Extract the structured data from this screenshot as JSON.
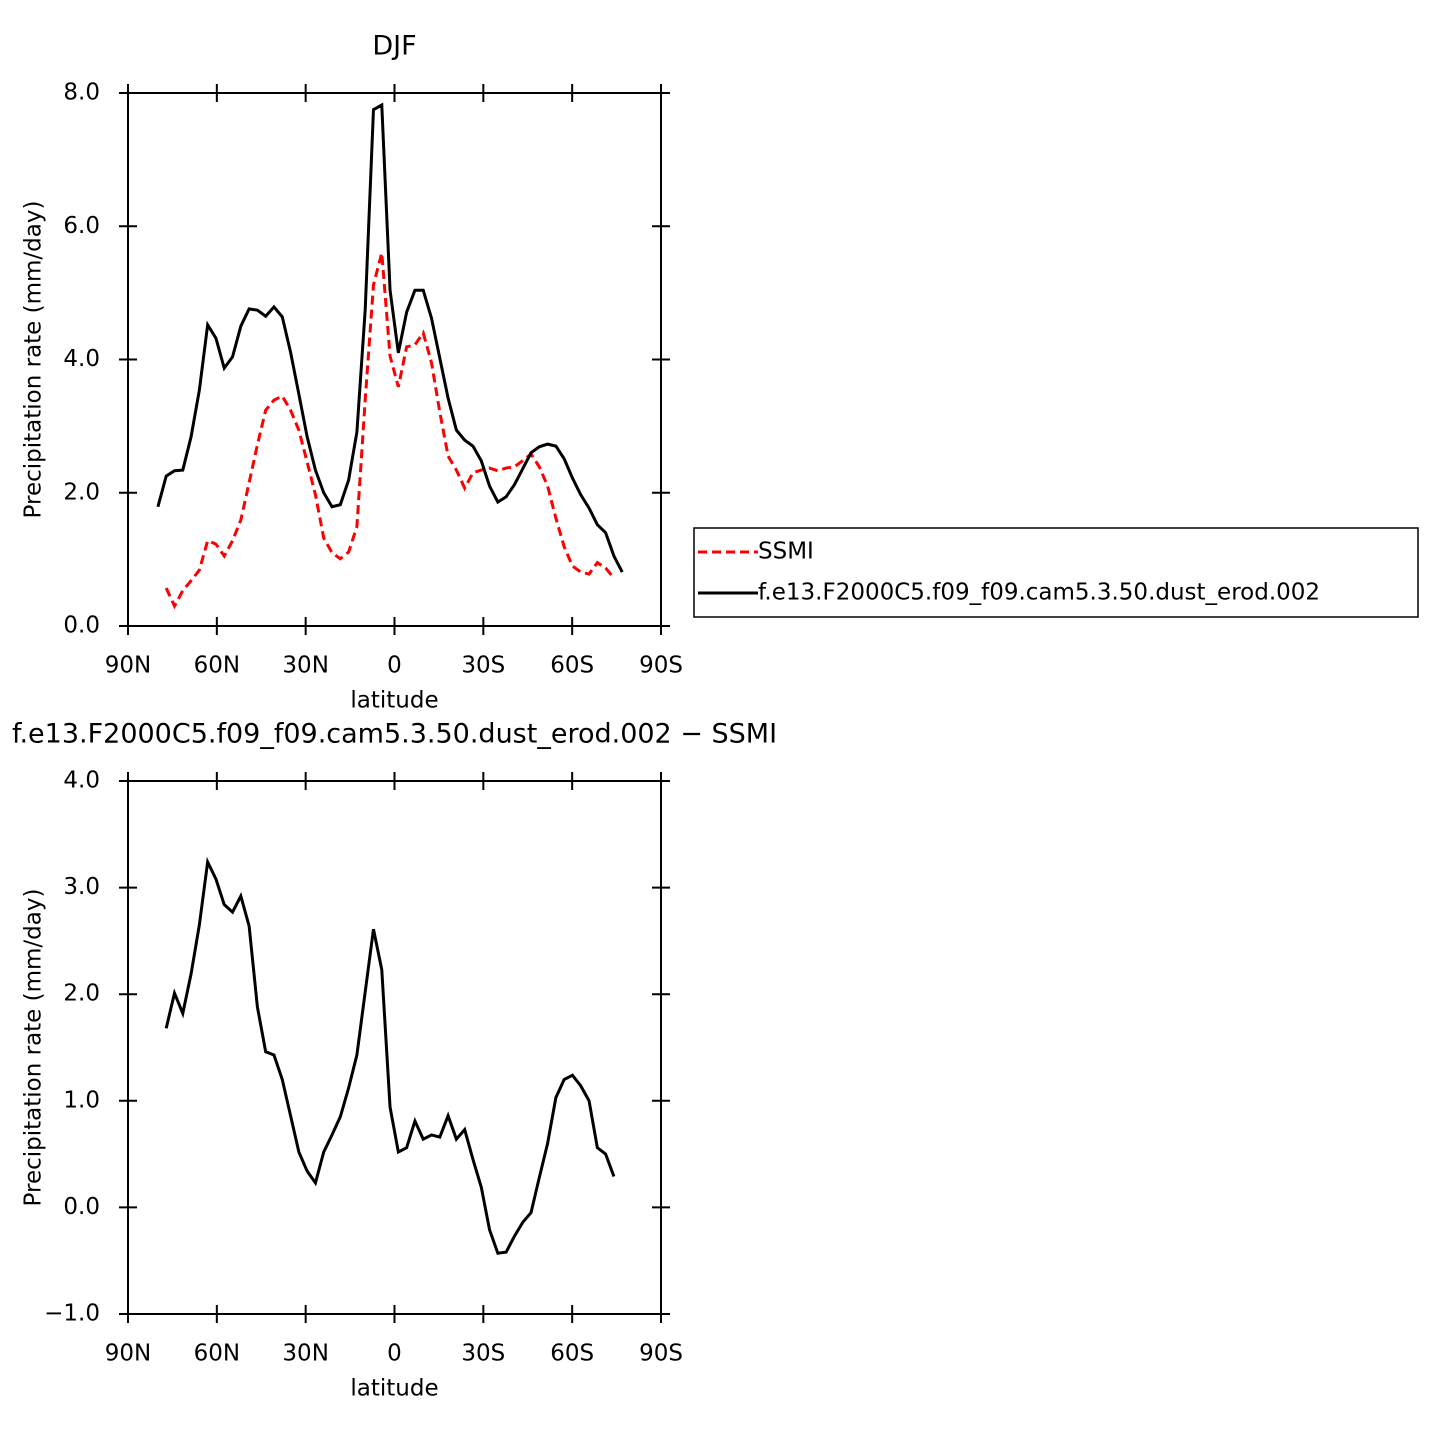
{
  "chart_data": [
    {
      "type": "line",
      "title": "DJF",
      "x_label": "latitude",
      "y_label": "Precipitation rate (mm/day)",
      "x": [
        79.9,
        77.1,
        74.3,
        71.5,
        68.7,
        65.9,
        63.1,
        60.3,
        57.5,
        54.7,
        51.9,
        49.1,
        46.3,
        43.5,
        40.7,
        37.9,
        35.1,
        32.3,
        29.5,
        26.7,
        23.9,
        21.1,
        18.3,
        15.5,
        12.7,
        9.9,
        7.1,
        4.3,
        1.5,
        -1.3,
        -4.1,
        -6.9,
        -9.7,
        -12.5,
        -15.3,
        -18.1,
        -20.9,
        -23.7,
        -26.5,
        -29.3,
        -32.1,
        -34.9,
        -37.7,
        -40.5,
        -43.3,
        -46.1,
        -48.9,
        -51.7,
        -54.5,
        -57.3,
        -60.1,
        -62.9,
        -65.7,
        -68.5,
        -71.3,
        -74.1,
        -76.9
      ],
      "xlim": [
        90,
        -90
      ],
      "xticks": [
        {
          "value": 90,
          "label": "90N"
        },
        {
          "value": 60,
          "label": "60N"
        },
        {
          "value": 30,
          "label": "30N"
        },
        0,
        {
          "value": -30,
          "label": "30S"
        },
        {
          "value": -60,
          "label": "60S"
        },
        {
          "value": -90,
          "label": "90S"
        }
      ],
      "ylim": [
        0,
        8
      ],
      "yticks": [
        {
          "value": 0,
          "label": "0.0"
        },
        {
          "value": 2,
          "label": "2.0"
        },
        {
          "value": 4,
          "label": "4.0"
        },
        {
          "value": 6,
          "label": "6.0"
        },
        {
          "value": 8,
          "label": "8.0"
        }
      ],
      "legend": "right",
      "series": [
        {
          "name": "SSMI",
          "color": "#ff0000",
          "dash": "dashed",
          "values": [
            null,
            0.57,
            0.3,
            0.53,
            0.68,
            0.84,
            1.28,
            1.23,
            1.05,
            1.28,
            1.59,
            2.15,
            2.72,
            3.24,
            3.39,
            3.45,
            3.24,
            2.94,
            2.46,
            1.97,
            1.32,
            1.1,
            1.01,
            1.11,
            1.49,
            3.39,
            5.12,
            5.6,
            4.05,
            3.59,
            4.19,
            4.22,
            4.4,
            3.95,
            3.21,
            2.55,
            2.34,
            2.07,
            2.3,
            2.34,
            2.37,
            2.33,
            2.37,
            2.39,
            2.48,
            2.58,
            2.39,
            2.1,
            1.62,
            1.19,
            0.9,
            0.81,
            0.78,
            0.95,
            0.87,
            0.72,
            null
          ]
        },
        {
          "name": "f.e13.F2000C5.f09_f09.cam5.3.50.dust_erod.002",
          "color": "#000000",
          "dash": "solid",
          "values": [
            1.79,
            2.25,
            2.33,
            2.34,
            2.84,
            3.54,
            4.52,
            4.32,
            3.87,
            4.04,
            4.5,
            4.76,
            4.74,
            4.65,
            4.79,
            4.64,
            4.11,
            3.48,
            2.84,
            2.34,
            2.0,
            1.79,
            1.82,
            2.19,
            2.91,
            4.74,
            7.75,
            7.82,
            5.04,
            4.1,
            4.71,
            5.04,
            5.04,
            4.62,
            4.02,
            3.42,
            2.94,
            2.79,
            2.7,
            2.48,
            2.1,
            1.86,
            1.94,
            2.12,
            2.36,
            2.6,
            2.69,
            2.73,
            2.7,
            2.51,
            2.22,
            1.97,
            1.77,
            1.52,
            1.4,
            1.05,
            0.81
          ]
        }
      ]
    },
    {
      "type": "line",
      "title": "f.e13.F2000C5.f09_f09.cam5.3.50.dust_erod.002 − SSMI",
      "x_label": "latitude",
      "y_label": "Precipitation rate (mm/day)",
      "x": [
        79.9,
        77.1,
        74.3,
        71.5,
        68.7,
        65.9,
        63.1,
        60.3,
        57.5,
        54.7,
        51.9,
        49.1,
        46.3,
        43.5,
        40.7,
        37.9,
        35.1,
        32.3,
        29.5,
        26.7,
        23.9,
        21.1,
        18.3,
        15.5,
        12.7,
        9.9,
        7.1,
        4.3,
        1.5,
        -1.3,
        -4.1,
        -6.9,
        -9.7,
        -12.5,
        -15.3,
        -18.1,
        -20.9,
        -23.7,
        -26.5,
        -29.3,
        -32.1,
        -34.9,
        -37.7,
        -40.5,
        -43.3,
        -46.1,
        -48.9,
        -51.7,
        -54.5,
        -57.3,
        -60.1,
        -62.9,
        -65.7,
        -68.5,
        -71.3,
        -74.1,
        -76.9
      ],
      "xlim": [
        90,
        -90
      ],
      "xticks": [
        {
          "value": 90,
          "label": "90N"
        },
        {
          "value": 60,
          "label": "60N"
        },
        {
          "value": 30,
          "label": "30N"
        },
        0,
        {
          "value": -30,
          "label": "30S"
        },
        {
          "value": -60,
          "label": "60S"
        },
        {
          "value": -90,
          "label": "90S"
        }
      ],
      "ylim": [
        -1,
        4
      ],
      "yticks": [
        {
          "value": -1,
          "label": "−1.0"
        },
        {
          "value": 0,
          "label": "0.0"
        },
        {
          "value": 1,
          "label": "1.0"
        },
        {
          "value": 2,
          "label": "2.0"
        },
        {
          "value": 3,
          "label": "3.0"
        },
        {
          "value": 4,
          "label": "4.0"
        }
      ],
      "series": [
        {
          "color": "#000000",
          "dash": "solid",
          "values": [
            null,
            1.68,
            2.01,
            1.82,
            2.19,
            2.65,
            3.24,
            3.08,
            2.84,
            2.77,
            2.92,
            2.64,
            1.88,
            1.46,
            1.43,
            1.2,
            0.86,
            0.52,
            0.34,
            0.23,
            0.52,
            0.68,
            0.85,
            1.12,
            1.43,
            2.02,
            2.61,
            2.23,
            0.94,
            0.52,
            0.56,
            0.81,
            0.64,
            0.68,
            0.66,
            0.86,
            0.64,
            0.73,
            0.45,
            0.19,
            -0.21,
            -0.43,
            -0.42,
            -0.27,
            -0.14,
            -0.05,
            0.28,
            0.6,
            1.03,
            1.2,
            1.24,
            1.14,
            1.0,
            0.56,
            0.5,
            0.29,
            null
          ]
        }
      ]
    }
  ]
}
